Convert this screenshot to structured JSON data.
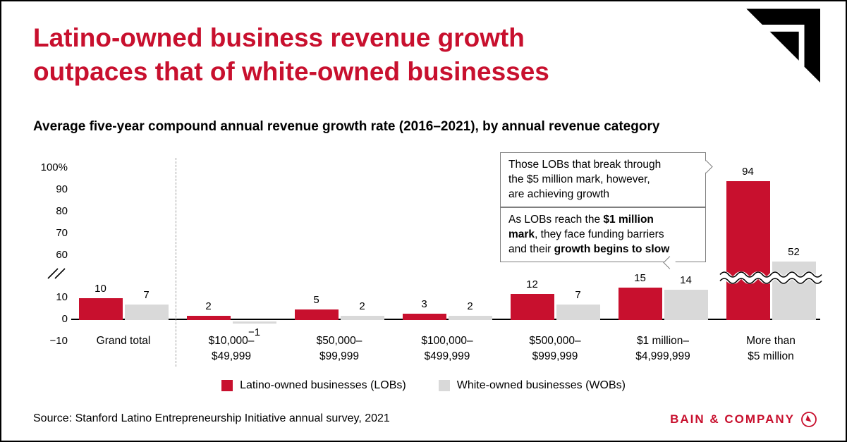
{
  "page": {
    "title_lines": [
      "Latino-owned business revenue growth",
      "outpaces that of white-owned businesses"
    ],
    "subtitle": "Average five-year compound annual revenue growth rate (2016–2021), by annual revenue category",
    "source": "Source: Stanford Latino Entrepreneurship Initiative annual survey, 2021",
    "brand": "BAIN & COMPANY",
    "logos": {
      "top_right": "bain-arrow-mark",
      "bottom_right": "bain-compass-emblem"
    }
  },
  "colors": {
    "accent_red": "#c8102e",
    "bar_gray": "#d9d9d9",
    "callout_border": "#7f7f7f"
  },
  "chart_data": {
    "type": "bar",
    "title": "Average five-year compound annual revenue growth rate (2016–2021), by annual revenue category",
    "value_unit": "%",
    "categories": [
      [
        "Grand total"
      ],
      [
        "$10,000–",
        "$49,999"
      ],
      [
        "$50,000–",
        "$99,999"
      ],
      [
        "$100,000–",
        "$499,999"
      ],
      [
        "$500,000–",
        "$999,999"
      ],
      [
        "$1 million–",
        "$4,999,999"
      ],
      [
        "More than",
        "$5 million"
      ]
    ],
    "series": [
      {
        "key": "lob",
        "name": "Latino-owned businesses (LOBs)",
        "color": "#c8102e",
        "values": [
          10,
          2,
          5,
          3,
          12,
          15,
          94
        ]
      },
      {
        "key": "wob",
        "name": "White-owned businesses (WOBs)",
        "color": "#d9d9d9",
        "values": [
          7,
          -1,
          2,
          2,
          7,
          14,
          52
        ]
      }
    ],
    "y_axis": {
      "ticks": [
        {
          "label": "100%",
          "value": 100
        },
        {
          "label": "90",
          "value": 90
        },
        {
          "label": "80",
          "value": 80
        },
        {
          "label": "70",
          "value": 70
        },
        {
          "label": "60",
          "value": 60
        },
        {
          "label": "10",
          "value": 10
        },
        {
          "label": "0",
          "value": 0
        },
        {
          "label": "−10",
          "value": -10
        }
      ],
      "axis_break_between": [
        10,
        60
      ],
      "ylim": [
        -10,
        100
      ]
    },
    "separator_after_category": 0,
    "bars_with_break_mark": [
      "More than $5 million"
    ],
    "legend_position": "bottom-center",
    "grid": false
  },
  "annotations": [
    {
      "tail": "right",
      "lines": [
        [
          {
            "t": "Those LOBs that break through",
            "b": 0
          }
        ],
        [
          {
            "t": "the $5 million mark, however,",
            "b": 0
          }
        ],
        [
          {
            "t": "are achieving growth",
            "b": 0
          }
        ]
      ]
    },
    {
      "tail": "down",
      "lines": [
        [
          {
            "t": "As LOBs reach the ",
            "b": 0
          },
          {
            "t": "$1 million",
            "b": 1
          }
        ],
        [
          {
            "t": "mark",
            "b": 1
          },
          {
            "t": ", they face funding barriers",
            "b": 0
          }
        ],
        [
          {
            "t": "and their ",
            "b": 0
          },
          {
            "t": "growth begins to slow",
            "b": 1
          }
        ]
      ]
    }
  ],
  "legend": {
    "items": [
      {
        "label": "Latino-owned businesses (LOBs)",
        "color": "#c8102e"
      },
      {
        "label": "White-owned businesses (WOBs)",
        "color": "#d9d9d9"
      }
    ]
  }
}
